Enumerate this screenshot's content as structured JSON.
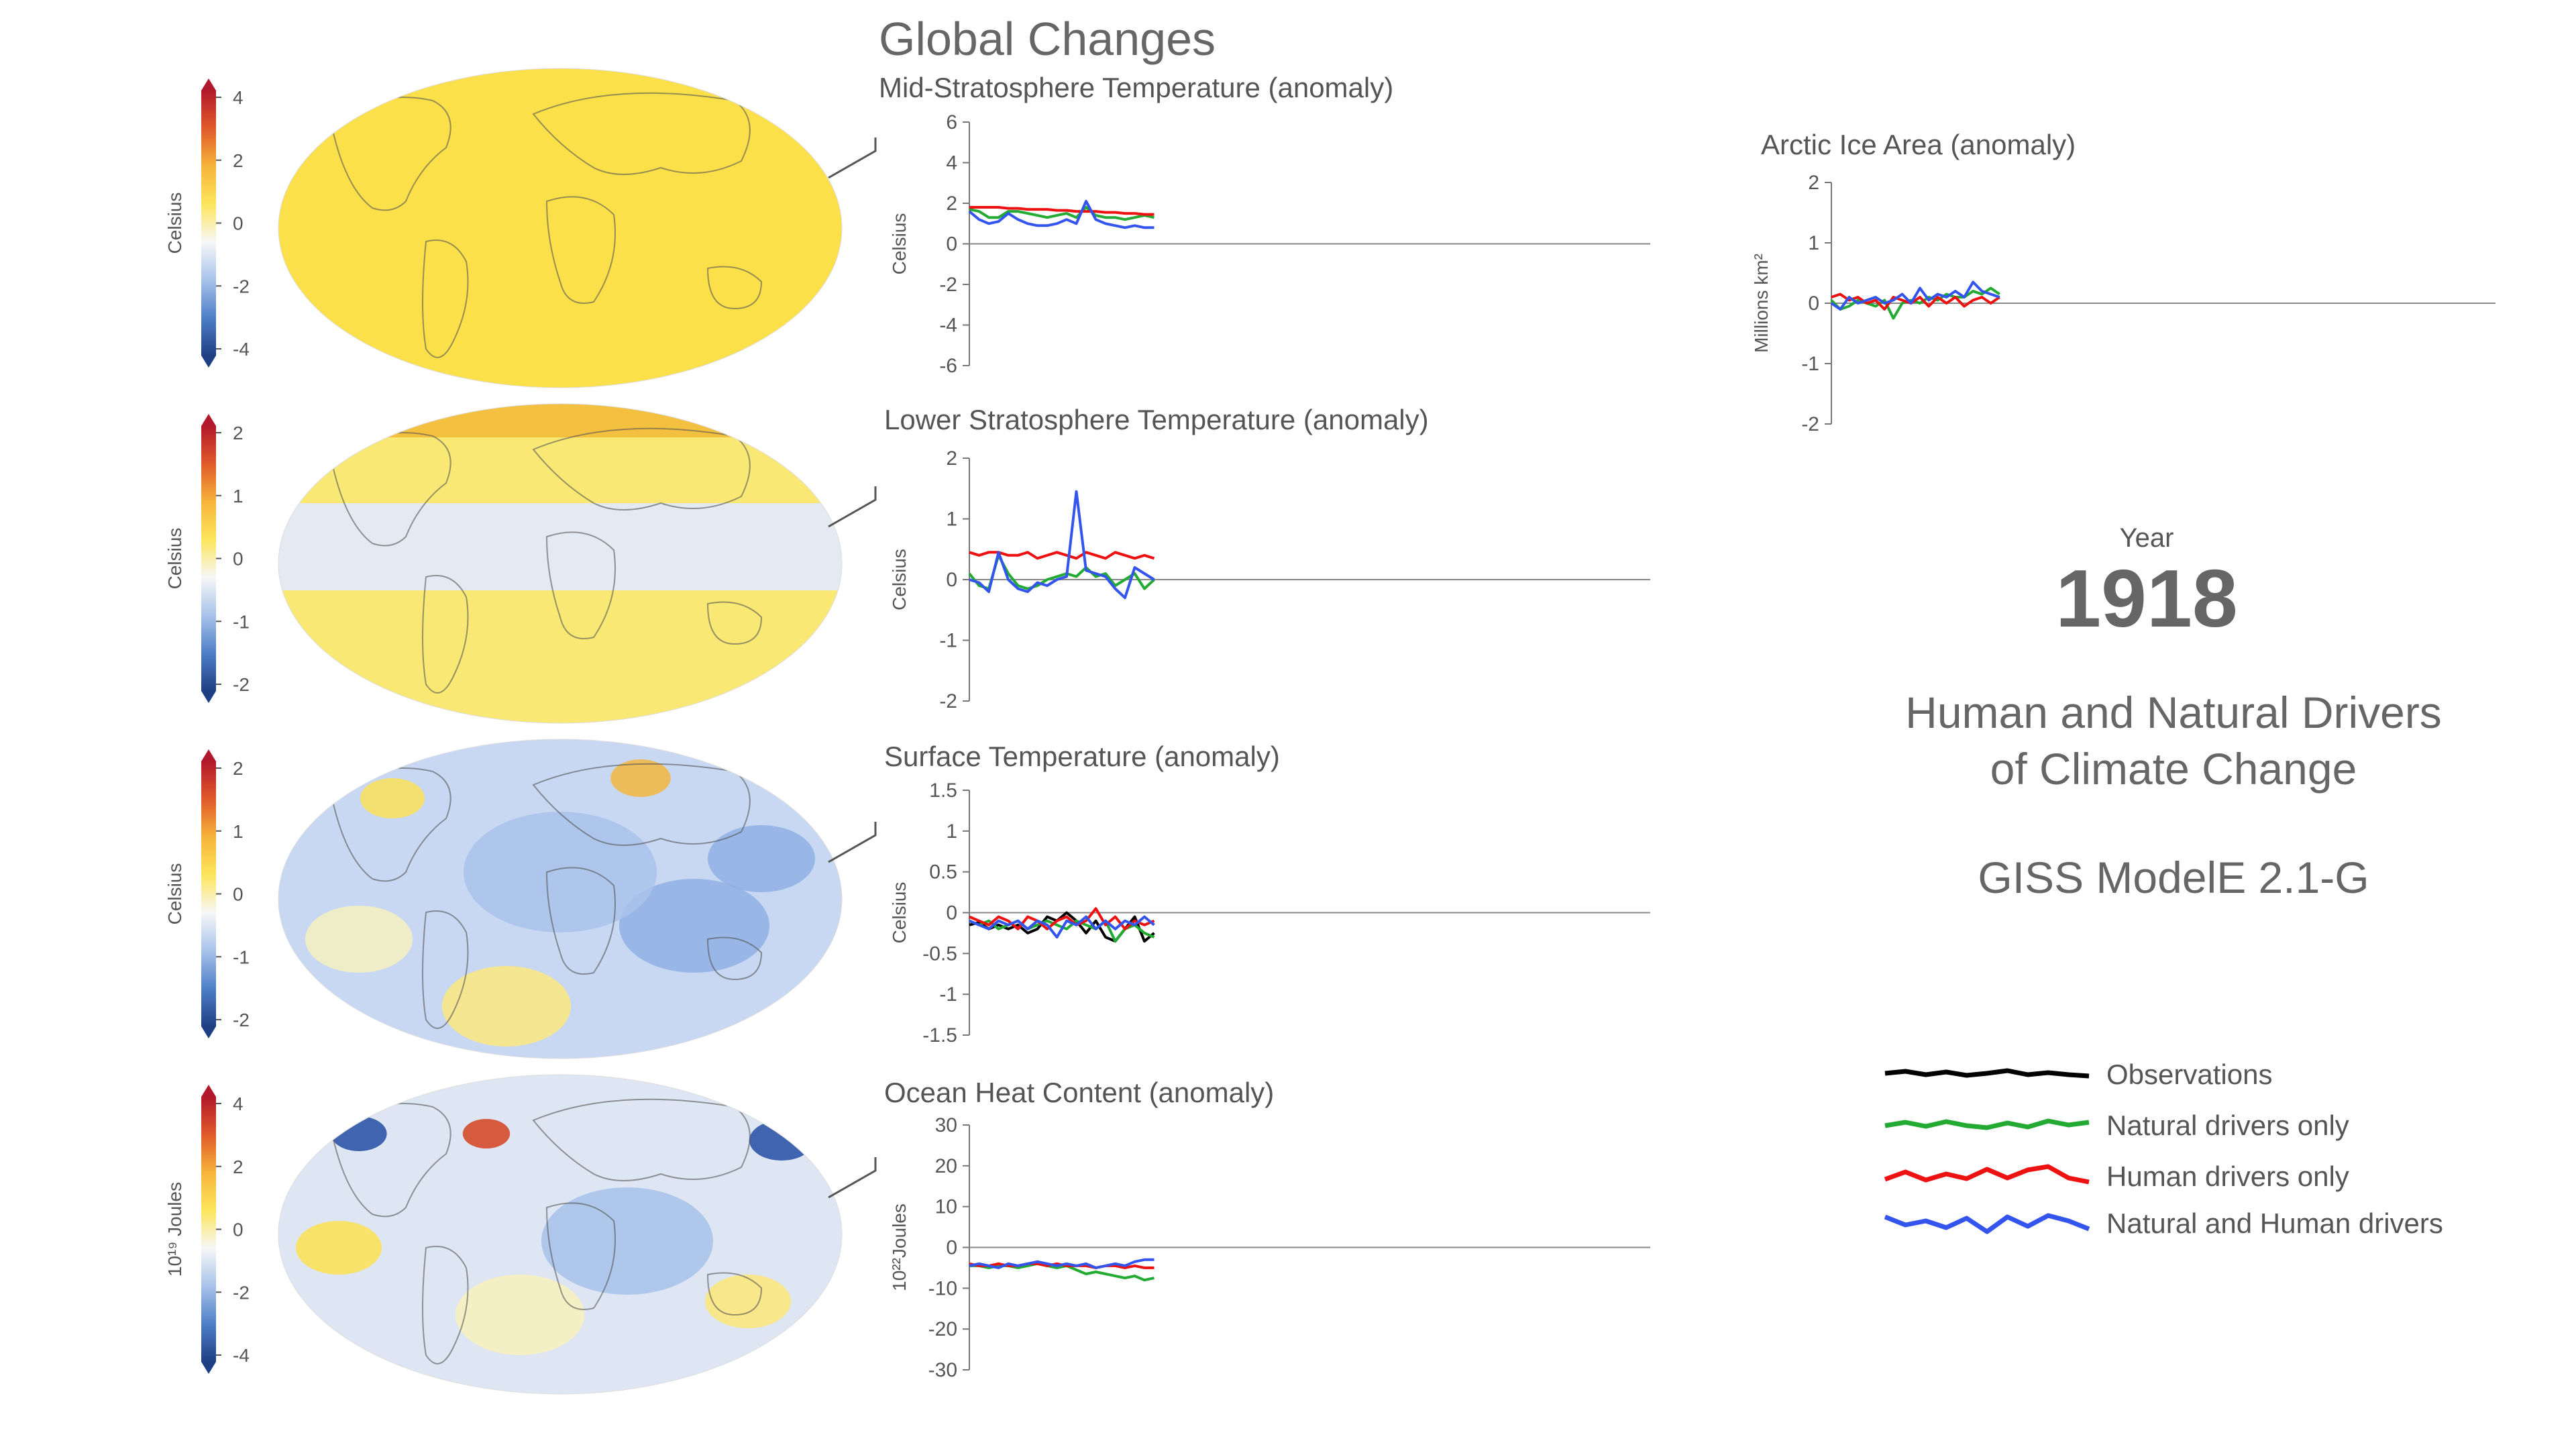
{
  "page": {
    "title": "Global Changes",
    "year_label": "Year",
    "year": "1918",
    "subtitle_line1": "Human and Natural Drivers",
    "subtitle_line2": "of Climate Change",
    "model": "GISS ModelE 2.1-G"
  },
  "maps": [
    {
      "unit": "Celsius",
      "ticks": [
        "4",
        "2",
        "0",
        "-2",
        "-4"
      ],
      "dominant_color": "#fbe04a"
    },
    {
      "unit": "Celsius",
      "ticks": [
        "2",
        "1",
        "0",
        "-1",
        "-2"
      ],
      "dominant_color": "#f9e874"
    },
    {
      "unit": "Celsius",
      "ticks": [
        "2",
        "1",
        "0",
        "-1",
        "-2"
      ],
      "dominant_color": "#c9d8f2"
    },
    {
      "unit": "10¹⁹ Joules",
      "ticks": [
        "4",
        "2",
        "0",
        "-2",
        "-4"
      ],
      "dominant_color": "#dfe6f3"
    }
  ],
  "colorbar_colors": [
    "#b2182b",
    "#e05a2b",
    "#f6b43a",
    "#fde55c",
    "#f7f7f7",
    "#a9c3ea",
    "#4f7fc6",
    "#1f3f85"
  ],
  "legend": [
    {
      "label": "Observations",
      "color": "#000000"
    },
    {
      "label": "Natural drivers only",
      "color": "#22aa33"
    },
    {
      "label": "Human drivers only",
      "color": "#ee1111"
    },
    {
      "label": "Natural and Human drivers",
      "color": "#3355ee"
    }
  ],
  "chart_data": [
    {
      "type": "line",
      "title": "Mid-Stratosphere Temperature (anomaly)",
      "ylabel": "Celsius",
      "ylim": [
        -6,
        6
      ],
      "yticks": [
        "6",
        "4",
        "2",
        "0",
        "-2",
        "-4",
        "-6"
      ],
      "x": [
        1880,
        1882,
        1884,
        1886,
        1888,
        1890,
        1892,
        1894,
        1896,
        1898,
        1900,
        1902,
        1904,
        1906,
        1908,
        1910,
        1912,
        1914,
        1916,
        1918
      ],
      "xlim": [
        1880,
        2020
      ],
      "series": [
        {
          "name": "Natural drivers only",
          "color": "#22aa33",
          "values": [
            1.7,
            1.6,
            1.3,
            1.3,
            1.6,
            1.6,
            1.5,
            1.4,
            1.3,
            1.4,
            1.5,
            1.3,
            1.8,
            1.4,
            1.3,
            1.3,
            1.2,
            1.3,
            1.4,
            1.3
          ]
        },
        {
          "name": "Human drivers only",
          "color": "#ee1111",
          "values": [
            1.8,
            1.8,
            1.8,
            1.8,
            1.75,
            1.75,
            1.7,
            1.7,
            1.7,
            1.65,
            1.65,
            1.6,
            1.6,
            1.6,
            1.55,
            1.55,
            1.5,
            1.5,
            1.45,
            1.45
          ]
        },
        {
          "name": "Natural and Human drivers",
          "color": "#3355ee",
          "values": [
            1.6,
            1.2,
            1.0,
            1.1,
            1.5,
            1.2,
            1.0,
            0.9,
            0.9,
            1.0,
            1.2,
            1.0,
            2.1,
            1.2,
            1.0,
            0.9,
            0.8,
            0.9,
            0.8,
            0.8
          ]
        }
      ]
    },
    {
      "type": "line",
      "title": "Lower Stratosphere Temperature (anomaly)",
      "ylabel": "Celsius",
      "ylim": [
        -2,
        2
      ],
      "yticks": [
        "2",
        "1",
        "0",
        "-1",
        "-2"
      ],
      "x": [
        1880,
        1882,
        1884,
        1886,
        1888,
        1890,
        1892,
        1894,
        1896,
        1898,
        1900,
        1902,
        1904,
        1906,
        1908,
        1910,
        1912,
        1914,
        1916,
        1918
      ],
      "xlim": [
        1880,
        2020
      ],
      "series": [
        {
          "name": "Natural drivers only",
          "color": "#22aa33",
          "values": [
            0.1,
            -0.1,
            -0.15,
            0.4,
            0.1,
            -0.1,
            -0.15,
            -0.1,
            0.0,
            0.05,
            0.1,
            0.05,
            0.2,
            0.05,
            0.1,
            -0.1,
            0.0,
            0.1,
            -0.15,
            0.0
          ]
        },
        {
          "name": "Human drivers only",
          "color": "#ee1111",
          "values": [
            0.45,
            0.4,
            0.45,
            0.45,
            0.4,
            0.4,
            0.45,
            0.35,
            0.4,
            0.45,
            0.4,
            0.35,
            0.45,
            0.4,
            0.35,
            0.45,
            0.4,
            0.35,
            0.4,
            0.35
          ]
        },
        {
          "name": "Natural and Human drivers",
          "color": "#3355ee",
          "values": [
            0.0,
            -0.05,
            -0.2,
            0.45,
            0.0,
            -0.15,
            -0.2,
            -0.05,
            -0.1,
            0.0,
            0.05,
            1.45,
            0.15,
            0.1,
            0.05,
            -0.15,
            -0.3,
            0.2,
            0.1,
            0.0
          ]
        }
      ]
    },
    {
      "type": "line",
      "title": "Surface Temperature (anomaly)",
      "ylabel": "Celsius",
      "ylim": [
        -1.5,
        1.5
      ],
      "yticks": [
        "1.5",
        "1",
        "0.5",
        "0",
        "-0.5",
        "-1",
        "-1.5"
      ],
      "x": [
        1880,
        1882,
        1884,
        1886,
        1888,
        1890,
        1892,
        1894,
        1896,
        1898,
        1900,
        1902,
        1904,
        1906,
        1908,
        1910,
        1912,
        1914,
        1916,
        1918
      ],
      "xlim": [
        1880,
        2020
      ],
      "series": [
        {
          "name": "Observations",
          "color": "#000000",
          "values": [
            -0.15,
            -0.12,
            -0.2,
            -0.15,
            -0.2,
            -0.15,
            -0.25,
            -0.2,
            -0.05,
            -0.1,
            0.0,
            -0.1,
            -0.25,
            -0.1,
            -0.3,
            -0.35,
            -0.2,
            -0.05,
            -0.35,
            -0.25
          ]
        },
        {
          "name": "Natural drivers only",
          "color": "#22aa33",
          "values": [
            -0.1,
            -0.15,
            -0.1,
            -0.2,
            -0.15,
            -0.1,
            -0.2,
            -0.15,
            -0.1,
            -0.15,
            -0.2,
            -0.1,
            -0.15,
            -0.2,
            -0.1,
            -0.35,
            -0.2,
            -0.15,
            -0.25,
            -0.3
          ]
        },
        {
          "name": "Human drivers only",
          "color": "#ee1111",
          "values": [
            -0.05,
            -0.1,
            -0.15,
            -0.05,
            -0.1,
            -0.2,
            -0.05,
            -0.1,
            -0.2,
            -0.1,
            -0.05,
            -0.15,
            -0.1,
            0.05,
            -0.15,
            -0.05,
            -0.2,
            -0.1,
            -0.15,
            -0.1
          ]
        },
        {
          "name": "Natural and Human drivers",
          "color": "#3355ee",
          "values": [
            -0.1,
            -0.15,
            -0.2,
            -0.1,
            -0.15,
            -0.1,
            -0.2,
            -0.1,
            -0.15,
            -0.3,
            -0.1,
            -0.15,
            -0.05,
            -0.2,
            -0.1,
            -0.2,
            -0.1,
            -0.15,
            -0.05,
            -0.15
          ]
        }
      ]
    },
    {
      "type": "line",
      "title": "Ocean Heat Content (anomaly)",
      "ylabel": "10²²Joules",
      "ylim": [
        -30,
        30
      ],
      "yticks": [
        "30",
        "20",
        "10",
        "0",
        "-10",
        "-20",
        "-30"
      ],
      "x": [
        1880,
        1882,
        1884,
        1886,
        1888,
        1890,
        1892,
        1894,
        1896,
        1898,
        1900,
        1902,
        1904,
        1906,
        1908,
        1910,
        1912,
        1914,
        1916,
        1918
      ],
      "xlim": [
        1880,
        2020
      ],
      "series": [
        {
          "name": "Natural drivers only",
          "color": "#22aa33",
          "values": [
            -4.5,
            -4.5,
            -5.0,
            -4.5,
            -4.5,
            -5.0,
            -4.5,
            -4.0,
            -4.5,
            -5.0,
            -4.5,
            -5.5,
            -6.5,
            -6.0,
            -6.5,
            -7.0,
            -7.5,
            -7.0,
            -8.0,
            -7.5
          ]
        },
        {
          "name": "Human drivers only",
          "color": "#ee1111",
          "values": [
            -4.0,
            -4.5,
            -4.5,
            -4.0,
            -4.5,
            -4.5,
            -4.0,
            -4.0,
            -4.5,
            -4.0,
            -4.5,
            -4.5,
            -4.5,
            -5.0,
            -4.5,
            -4.5,
            -5.0,
            -4.5,
            -5.0,
            -5.0
          ]
        },
        {
          "name": "Natural and Human drivers",
          "color": "#3355ee",
          "values": [
            -4.5,
            -4.0,
            -4.5,
            -5.0,
            -4.0,
            -4.5,
            -4.0,
            -3.5,
            -4.0,
            -4.5,
            -4.0,
            -4.5,
            -4.0,
            -5.0,
            -4.5,
            -4.0,
            -4.5,
            -3.5,
            -3.0,
            -3.0
          ]
        }
      ]
    },
    {
      "type": "line",
      "title": "Arctic Ice Area (anomaly)",
      "ylabel": "Millions km²",
      "ylim": [
        -2,
        2
      ],
      "yticks": [
        "2",
        "1",
        "0",
        "-1",
        "-2"
      ],
      "x": [
        1880,
        1882,
        1884,
        1886,
        1888,
        1890,
        1892,
        1894,
        1896,
        1898,
        1900,
        1902,
        1904,
        1906,
        1908,
        1910,
        1912,
        1914,
        1916,
        1918
      ],
      "xlim": [
        1880,
        2030
      ],
      "series": [
        {
          "name": "Natural drivers only",
          "color": "#22aa33",
          "values": [
            0.05,
            -0.1,
            -0.05,
            0.05,
            0.0,
            -0.05,
            0.05,
            -0.25,
            0.0,
            0.05,
            0.0,
            0.1,
            0.05,
            0.15,
            0.1,
            0.1,
            0.2,
            0.15,
            0.25,
            0.15
          ]
        },
        {
          "name": "Human drivers only",
          "color": "#ee1111",
          "values": [
            0.1,
            0.15,
            0.05,
            0.1,
            0.0,
            0.05,
            -0.1,
            0.1,
            0.05,
            0.0,
            0.1,
            -0.05,
            0.1,
            0.0,
            0.1,
            -0.05,
            0.05,
            0.1,
            0.0,
            0.1
          ]
        },
        {
          "name": "Natural and Human drivers",
          "color": "#3355ee",
          "values": [
            0.0,
            -0.1,
            0.1,
            0.0,
            0.05,
            0.1,
            0.0,
            0.05,
            0.15,
            0.0,
            0.25,
            0.05,
            0.15,
            0.1,
            0.2,
            0.1,
            0.35,
            0.2,
            0.15,
            0.1
          ]
        }
      ]
    }
  ]
}
